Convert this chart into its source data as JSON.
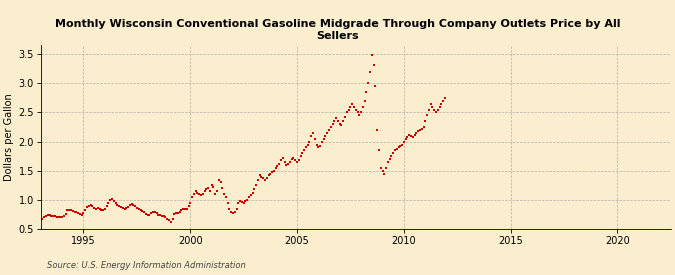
{
  "title": "Monthly Wisconsin Conventional Gasoline Midgrade Through Company Outlets Price by All\nSellers",
  "ylabel": "Dollars per Gallon",
  "source": "Source: U.S. Energy Information Administration",
  "background_color": "#faeecf",
  "marker_color": "#cc0000",
  "xlim": [
    1993.0,
    2022.5
  ],
  "ylim": [
    0.5,
    3.65
  ],
  "yticks": [
    0.5,
    1.0,
    1.5,
    2.0,
    2.5,
    3.0,
    3.5
  ],
  "xticks": [
    1995,
    2000,
    2005,
    2010,
    2015,
    2020
  ],
  "data": [
    [
      1993.08,
      0.68
    ],
    [
      1993.17,
      0.7
    ],
    [
      1993.25,
      0.72
    ],
    [
      1993.33,
      0.75
    ],
    [
      1993.42,
      0.74
    ],
    [
      1993.5,
      0.72
    ],
    [
      1993.58,
      0.73
    ],
    [
      1993.67,
      0.72
    ],
    [
      1993.75,
      0.71
    ],
    [
      1993.83,
      0.7
    ],
    [
      1993.92,
      0.7
    ],
    [
      1994.0,
      0.7
    ],
    [
      1994.08,
      0.72
    ],
    [
      1994.17,
      0.76
    ],
    [
      1994.25,
      0.82
    ],
    [
      1994.33,
      0.83
    ],
    [
      1994.42,
      0.82
    ],
    [
      1994.5,
      0.81
    ],
    [
      1994.58,
      0.79
    ],
    [
      1994.67,
      0.8
    ],
    [
      1994.75,
      0.78
    ],
    [
      1994.83,
      0.76
    ],
    [
      1994.92,
      0.75
    ],
    [
      1995.0,
      0.78
    ],
    [
      1995.08,
      0.82
    ],
    [
      1995.17,
      0.88
    ],
    [
      1995.25,
      0.9
    ],
    [
      1995.33,
      0.91
    ],
    [
      1995.42,
      0.89
    ],
    [
      1995.5,
      0.87
    ],
    [
      1995.58,
      0.85
    ],
    [
      1995.67,
      0.86
    ],
    [
      1995.75,
      0.85
    ],
    [
      1995.83,
      0.83
    ],
    [
      1995.92,
      0.82
    ],
    [
      1996.0,
      0.85
    ],
    [
      1996.08,
      0.9
    ],
    [
      1996.17,
      0.95
    ],
    [
      1996.25,
      1.0
    ],
    [
      1996.33,
      1.02
    ],
    [
      1996.42,
      0.99
    ],
    [
      1996.5,
      0.95
    ],
    [
      1996.58,
      0.91
    ],
    [
      1996.67,
      0.89
    ],
    [
      1996.75,
      0.88
    ],
    [
      1996.83,
      0.86
    ],
    [
      1996.92,
      0.85
    ],
    [
      1997.0,
      0.86
    ],
    [
      1997.08,
      0.88
    ],
    [
      1997.17,
      0.92
    ],
    [
      1997.25,
      0.93
    ],
    [
      1997.33,
      0.92
    ],
    [
      1997.42,
      0.9
    ],
    [
      1997.5,
      0.87
    ],
    [
      1997.58,
      0.85
    ],
    [
      1997.67,
      0.83
    ],
    [
      1997.75,
      0.81
    ],
    [
      1997.83,
      0.79
    ],
    [
      1997.92,
      0.76
    ],
    [
      1998.0,
      0.74
    ],
    [
      1998.08,
      0.74
    ],
    [
      1998.17,
      0.78
    ],
    [
      1998.25,
      0.8
    ],
    [
      1998.33,
      0.79
    ],
    [
      1998.42,
      0.77
    ],
    [
      1998.5,
      0.75
    ],
    [
      1998.58,
      0.74
    ],
    [
      1998.67,
      0.73
    ],
    [
      1998.75,
      0.72
    ],
    [
      1998.83,
      0.7
    ],
    [
      1998.92,
      0.68
    ],
    [
      1999.0,
      0.65
    ],
    [
      1999.08,
      0.62
    ],
    [
      1999.17,
      0.68
    ],
    [
      1999.25,
      0.76
    ],
    [
      1999.33,
      0.78
    ],
    [
      1999.42,
      0.77
    ],
    [
      1999.5,
      0.8
    ],
    [
      1999.58,
      0.83
    ],
    [
      1999.67,
      0.85
    ],
    [
      1999.75,
      0.84
    ],
    [
      1999.83,
      0.85
    ],
    [
      1999.92,
      0.9
    ],
    [
      2000.0,
      0.95
    ],
    [
      2000.08,
      1.05
    ],
    [
      2000.17,
      1.1
    ],
    [
      2000.25,
      1.15
    ],
    [
      2000.33,
      1.12
    ],
    [
      2000.42,
      1.1
    ],
    [
      2000.5,
      1.08
    ],
    [
      2000.58,
      1.1
    ],
    [
      2000.67,
      1.15
    ],
    [
      2000.75,
      1.18
    ],
    [
      2000.83,
      1.2
    ],
    [
      2000.92,
      1.15
    ],
    [
      2001.0,
      1.25
    ],
    [
      2001.08,
      1.22
    ],
    [
      2001.17,
      1.1
    ],
    [
      2001.25,
      1.15
    ],
    [
      2001.33,
      1.35
    ],
    [
      2001.42,
      1.3
    ],
    [
      2001.5,
      1.2
    ],
    [
      2001.58,
      1.1
    ],
    [
      2001.67,
      1.05
    ],
    [
      2001.75,
      0.95
    ],
    [
      2001.83,
      0.85
    ],
    [
      2001.92,
      0.8
    ],
    [
      2002.0,
      0.78
    ],
    [
      2002.08,
      0.8
    ],
    [
      2002.17,
      0.85
    ],
    [
      2002.25,
      0.95
    ],
    [
      2002.33,
      0.98
    ],
    [
      2002.42,
      0.97
    ],
    [
      2002.5,
      0.95
    ],
    [
      2002.58,
      0.98
    ],
    [
      2002.67,
      1.0
    ],
    [
      2002.75,
      1.05
    ],
    [
      2002.83,
      1.08
    ],
    [
      2002.92,
      1.12
    ],
    [
      2003.0,
      1.18
    ],
    [
      2003.08,
      1.25
    ],
    [
      2003.17,
      1.35
    ],
    [
      2003.25,
      1.42
    ],
    [
      2003.33,
      1.4
    ],
    [
      2003.42,
      1.38
    ],
    [
      2003.5,
      1.35
    ],
    [
      2003.58,
      1.38
    ],
    [
      2003.67,
      1.42
    ],
    [
      2003.75,
      1.45
    ],
    [
      2003.83,
      1.48
    ],
    [
      2003.92,
      1.5
    ],
    [
      2004.0,
      1.55
    ],
    [
      2004.08,
      1.58
    ],
    [
      2004.17,
      1.62
    ],
    [
      2004.25,
      1.68
    ],
    [
      2004.33,
      1.72
    ],
    [
      2004.42,
      1.65
    ],
    [
      2004.5,
      1.6
    ],
    [
      2004.58,
      1.62
    ],
    [
      2004.67,
      1.65
    ],
    [
      2004.75,
      1.7
    ],
    [
      2004.83,
      1.72
    ],
    [
      2004.92,
      1.68
    ],
    [
      2005.0,
      1.65
    ],
    [
      2005.08,
      1.68
    ],
    [
      2005.17,
      1.75
    ],
    [
      2005.25,
      1.8
    ],
    [
      2005.33,
      1.85
    ],
    [
      2005.42,
      1.9
    ],
    [
      2005.5,
      1.95
    ],
    [
      2005.58,
      2.0
    ],
    [
      2005.67,
      2.1
    ],
    [
      2005.75,
      2.15
    ],
    [
      2005.83,
      2.05
    ],
    [
      2005.92,
      1.95
    ],
    [
      2006.0,
      1.9
    ],
    [
      2006.08,
      1.92
    ],
    [
      2006.17,
      2.0
    ],
    [
      2006.25,
      2.05
    ],
    [
      2006.33,
      2.1
    ],
    [
      2006.42,
      2.15
    ],
    [
      2006.5,
      2.2
    ],
    [
      2006.58,
      2.25
    ],
    [
      2006.67,
      2.3
    ],
    [
      2006.75,
      2.35
    ],
    [
      2006.83,
      2.4
    ],
    [
      2006.92,
      2.35
    ],
    [
      2007.0,
      2.3
    ],
    [
      2007.08,
      2.28
    ],
    [
      2007.17,
      2.35
    ],
    [
      2007.25,
      2.42
    ],
    [
      2007.33,
      2.5
    ],
    [
      2007.42,
      2.55
    ],
    [
      2007.5,
      2.6
    ],
    [
      2007.58,
      2.65
    ],
    [
      2007.67,
      2.6
    ],
    [
      2007.75,
      2.55
    ],
    [
      2007.83,
      2.5
    ],
    [
      2007.92,
      2.45
    ],
    [
      2008.0,
      2.5
    ],
    [
      2008.08,
      2.6
    ],
    [
      2008.17,
      2.7
    ],
    [
      2008.25,
      2.85
    ],
    [
      2008.33,
      3.0
    ],
    [
      2008.42,
      3.2
    ],
    [
      2008.5,
      3.48
    ],
    [
      2008.58,
      3.32
    ],
    [
      2008.67,
      2.95
    ],
    [
      2008.75,
      2.2
    ],
    [
      2008.83,
      1.85
    ],
    [
      2008.92,
      1.55
    ],
    [
      2009.0,
      1.5
    ],
    [
      2009.08,
      1.45
    ],
    [
      2009.17,
      1.55
    ],
    [
      2009.25,
      1.65
    ],
    [
      2009.33,
      1.7
    ],
    [
      2009.42,
      1.75
    ],
    [
      2009.5,
      1.8
    ],
    [
      2009.58,
      1.85
    ],
    [
      2009.67,
      1.88
    ],
    [
      2009.75,
      1.9
    ],
    [
      2009.83,
      1.92
    ],
    [
      2009.92,
      1.95
    ],
    [
      2010.0,
      2.0
    ],
    [
      2010.08,
      2.05
    ],
    [
      2010.17,
      2.08
    ],
    [
      2010.25,
      2.12
    ],
    [
      2010.33,
      2.1
    ],
    [
      2010.42,
      2.08
    ],
    [
      2010.5,
      2.12
    ],
    [
      2010.58,
      2.15
    ],
    [
      2010.67,
      2.18
    ],
    [
      2010.75,
      2.2
    ],
    [
      2010.83,
      2.22
    ],
    [
      2010.92,
      2.25
    ],
    [
      2011.0,
      2.35
    ],
    [
      2011.08,
      2.45
    ],
    [
      2011.17,
      2.55
    ],
    [
      2011.25,
      2.65
    ],
    [
      2011.33,
      2.6
    ],
    [
      2011.42,
      2.55
    ],
    [
      2011.5,
      2.5
    ],
    [
      2011.58,
      2.55
    ],
    [
      2011.67,
      2.6
    ],
    [
      2011.75,
      2.65
    ],
    [
      2011.83,
      2.7
    ],
    [
      2011.92,
      2.75
    ]
  ]
}
